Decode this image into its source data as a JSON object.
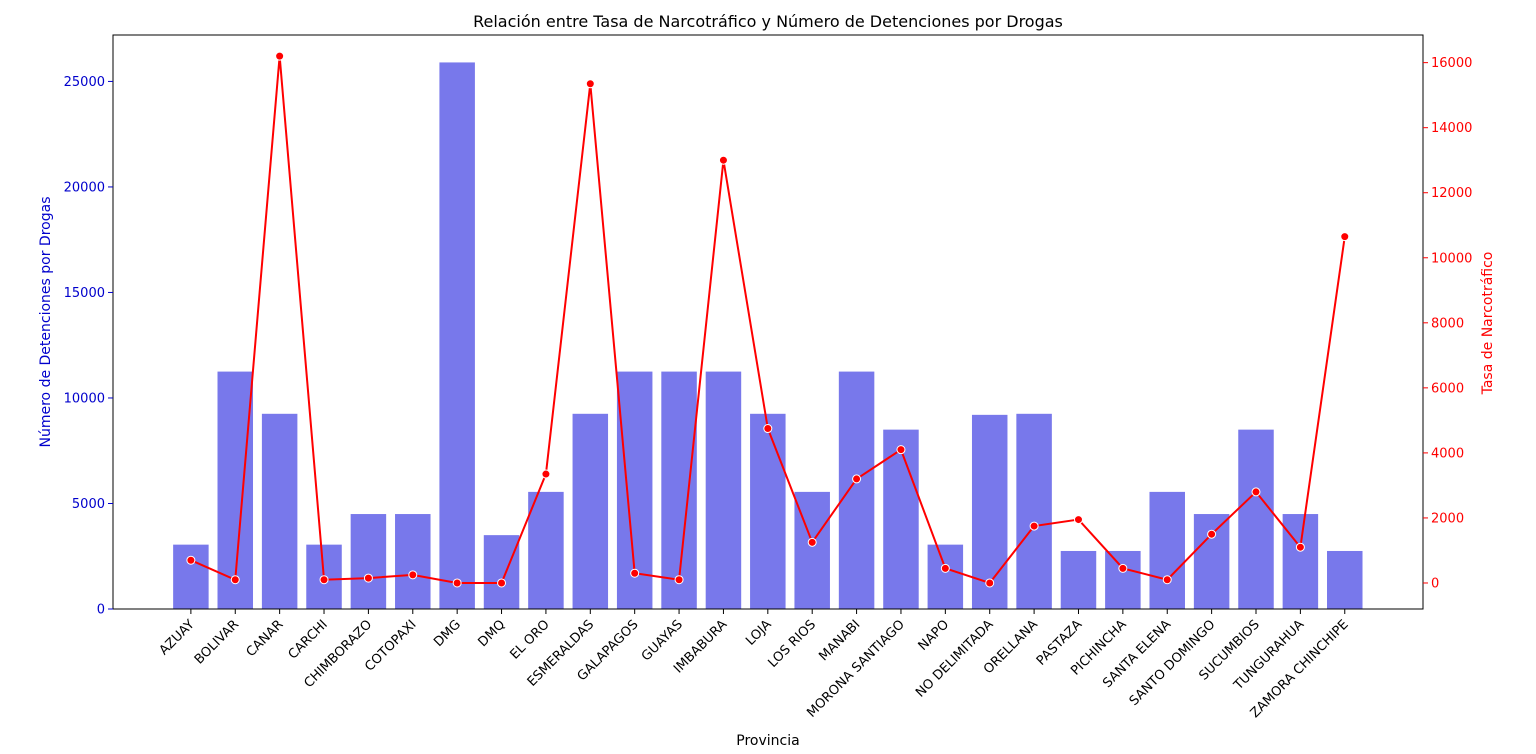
{
  "chart_data": {
    "type": "bar",
    "title": "Relación entre Tasa de Narcotráfico y Número de Detenciones por Drogas",
    "xlabel": "Provincia",
    "ylabel": "Número de Detenciones por Drogas",
    "y2label": "Tasa de Narcotráfico",
    "categories": [
      "AZUAY",
      "BOLIVAR",
      "CANAR",
      "CARCHI",
      "CHIMBORAZO",
      "COTOPAXI",
      "DMG",
      "DMQ",
      "EL ORO",
      "ESMERALDAS",
      "GALAPAGOS",
      "GUAYAS",
      "IMBABURA",
      "LOJA",
      "LOS RIOS",
      "MANABI",
      "MORONA SANTIAGO",
      "NAPO",
      "NO DELIMITADA",
      "ORELLANA",
      "PASTAZA",
      "PICHINCHA",
      "SANTA ELENA",
      "SANTO DOMINGO",
      "SUCUMBIOS",
      "TUNGURAHUA",
      "ZAMORA CHINCHIPE"
    ],
    "series": [
      {
        "name": "Número de Detenciones por Drogas",
        "type": "bar",
        "axis": "left",
        "color": "#7878EB",
        "values": [
          3050,
          11250,
          9250,
          3050,
          4500,
          4500,
          25900,
          3500,
          5550,
          9250,
          11250,
          11250,
          11250,
          9250,
          5550,
          11250,
          8500,
          3050,
          9200,
          9250,
          2750,
          2750,
          5550,
          4500,
          8500,
          4500,
          2750
        ]
      },
      {
        "name": "Tasa de Narcotráfico",
        "type": "line",
        "axis": "right",
        "color": "#FF0000",
        "values": [
          700,
          100,
          16200,
          100,
          150,
          250,
          0,
          0,
          3350,
          15350,
          300,
          100,
          13000,
          4750,
          1250,
          3200,
          4100,
          450,
          0,
          1750,
          1950,
          450,
          100,
          1500,
          2800,
          1100,
          10650
        ]
      }
    ],
    "ylim": [
      0,
      27200
    ],
    "y2lim": [
      -800,
      16850
    ],
    "yticks": [
      0,
      5000,
      10000,
      15000,
      20000,
      25000
    ],
    "y2ticks": [
      0,
      2000,
      4000,
      6000,
      8000,
      10000,
      12000,
      14000,
      16000
    ],
    "left_axis_color": "#0000CC",
    "right_axis_color": "#FF0000",
    "grid": false,
    "legend": "none"
  }
}
